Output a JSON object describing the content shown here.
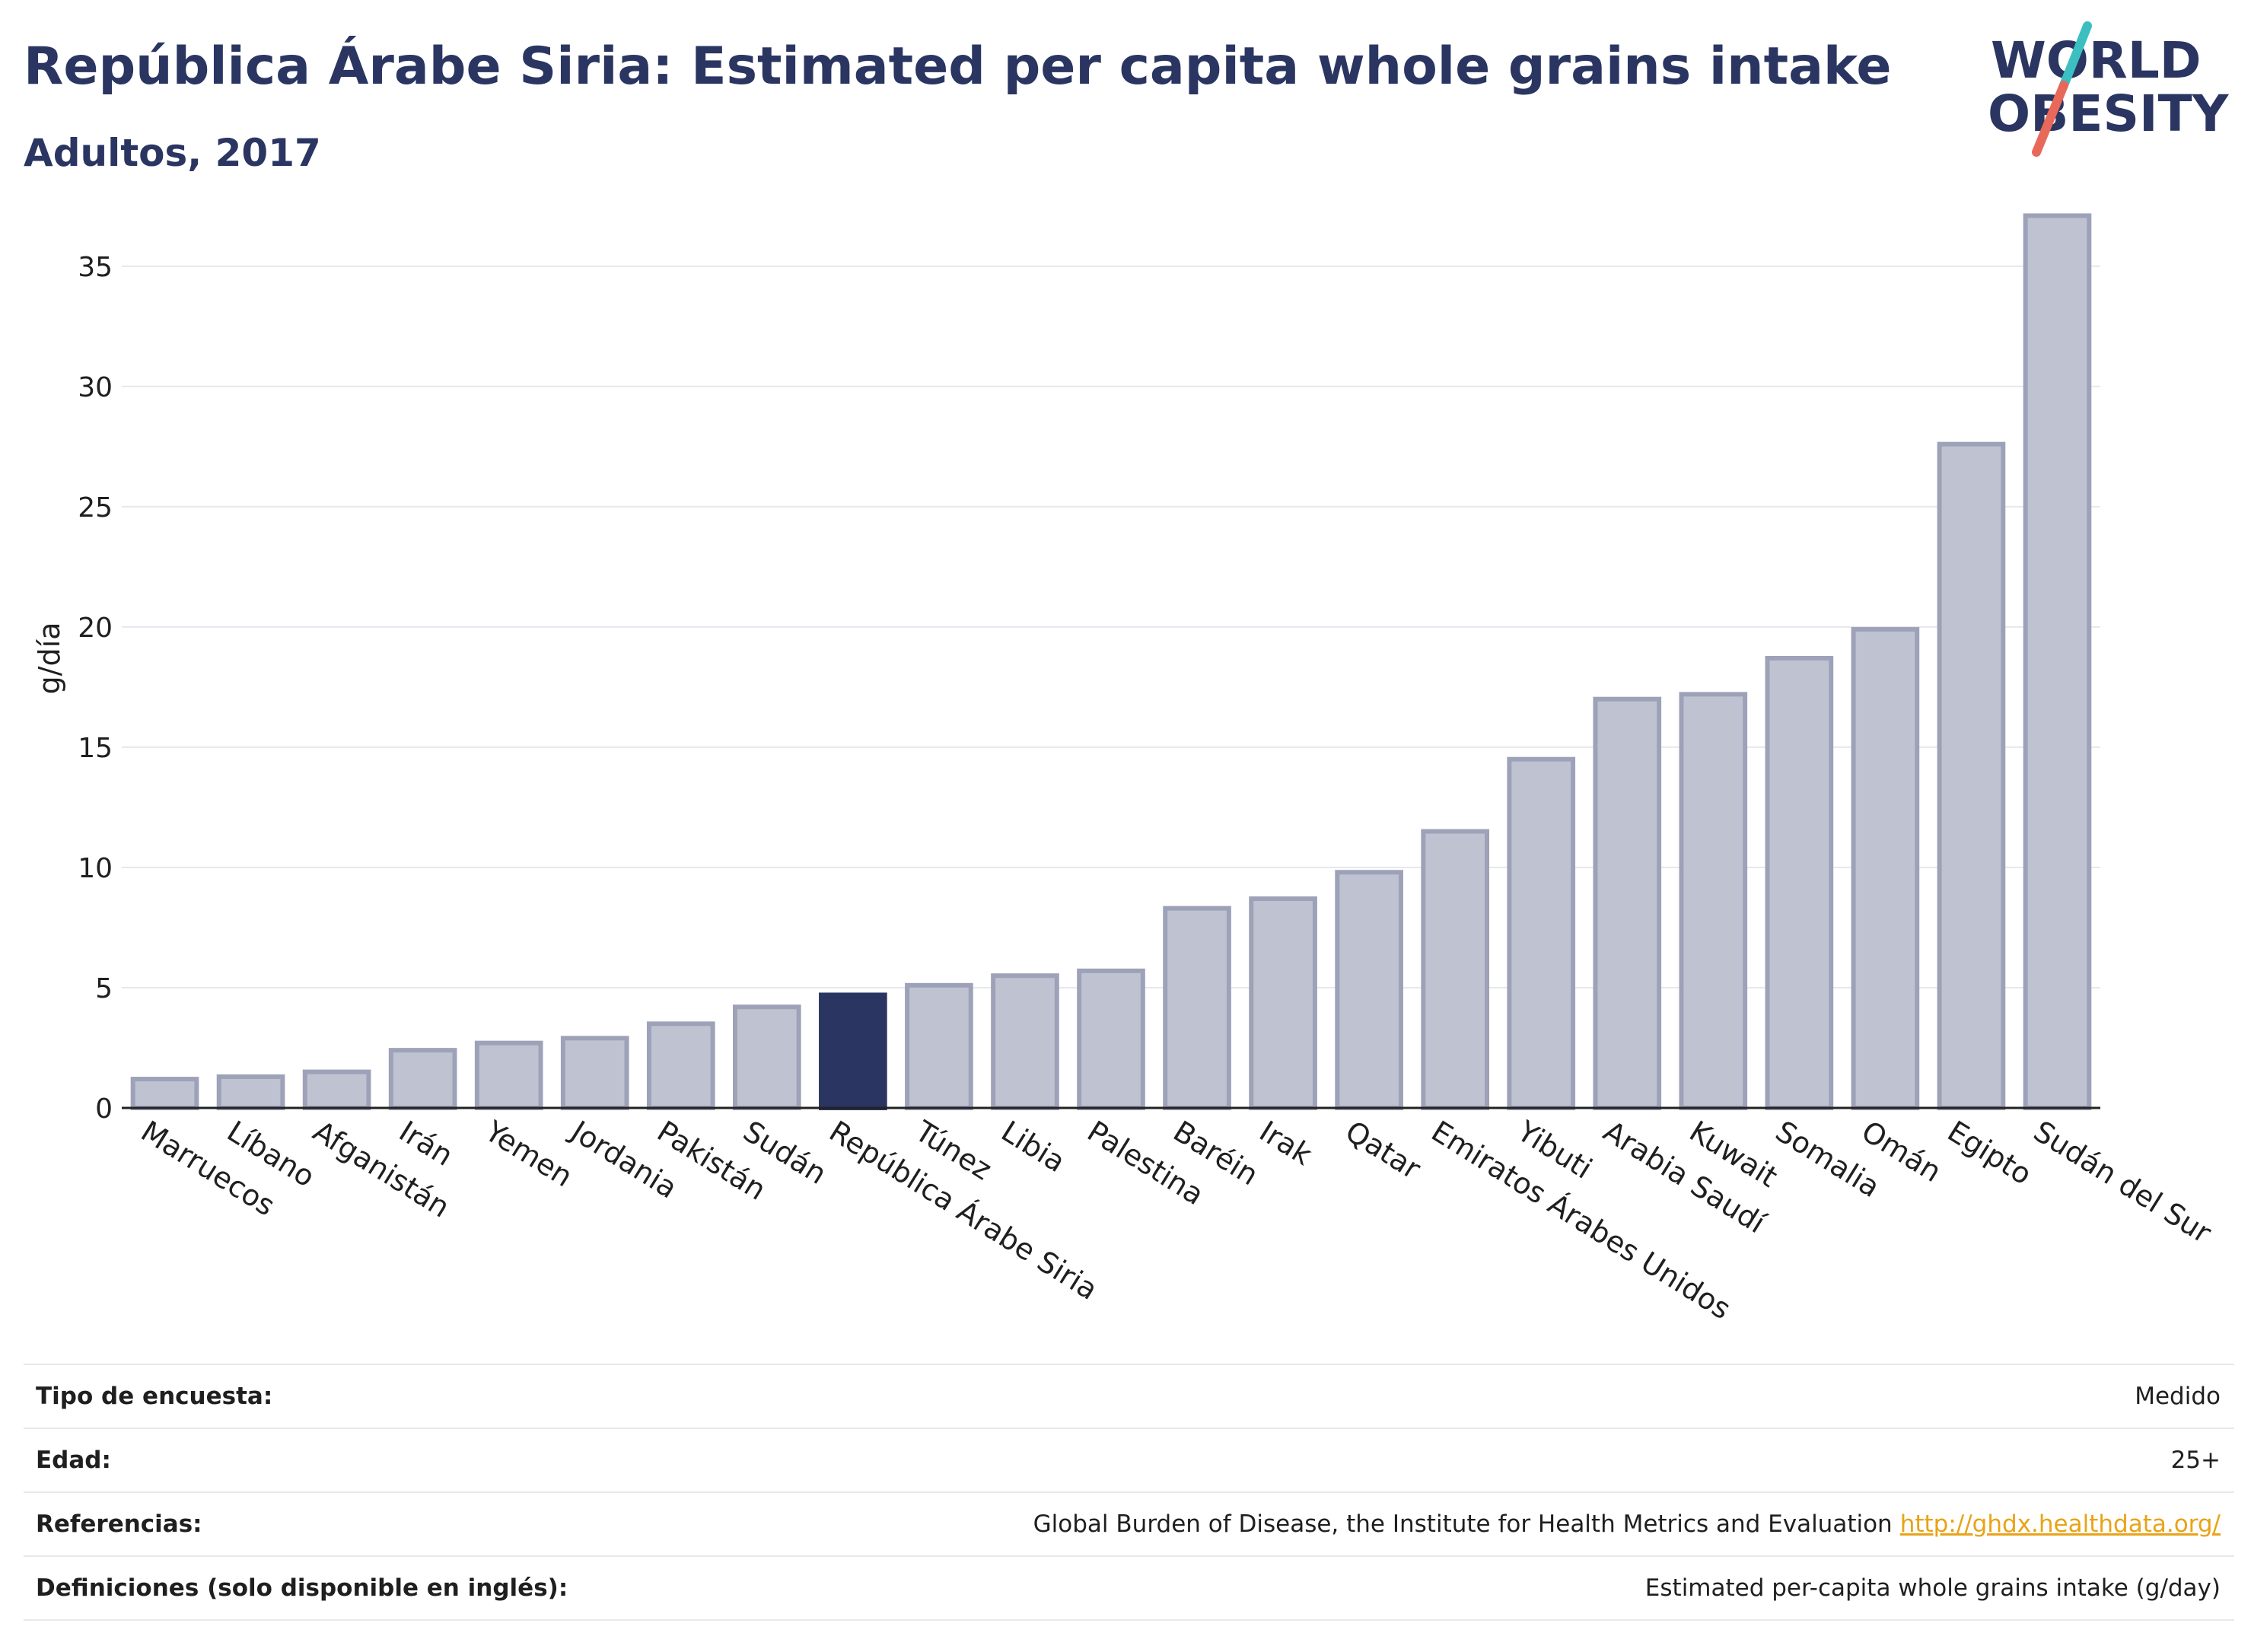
{
  "header": {
    "title": "República Árabe Siria: Estimated per capita whole grains intake",
    "subtitle": "Adultos, 2017"
  },
  "logo": {
    "line1": "WORLD",
    "line2": "OBESITY",
    "colors": {
      "text": "#2a3561",
      "slash_teal": "#3bbfc0",
      "slash_red": "#e8685a"
    }
  },
  "colors": {
    "bar_default": "#bfc3d1",
    "bar_default_stroke": "#9da2b8",
    "bar_highlight": "#2a3561",
    "grid": "#e6e8ee",
    "axis": "#222222"
  },
  "chart_data": {
    "type": "bar",
    "ylabel": "g/día",
    "ylim": [
      0,
      38
    ],
    "yticks": [
      0,
      5,
      10,
      15,
      20,
      25,
      30,
      35
    ],
    "grid": true,
    "highlight": "República Árabe Siria",
    "categories": [
      "Marruecos",
      "Líbano",
      "Afganistán",
      "Irán",
      "Yemen",
      "Jordania",
      "Pakistán",
      "Sudán",
      "República Árabe Siria",
      "Túnez",
      "Libia",
      "Palestina",
      "Baréin",
      "Irak",
      "Qatar",
      "Emiratos Árabes Unidos",
      "Yibuti",
      "Arabia Saudí",
      "Kuwait",
      "Somalia",
      "Omán",
      "Egipto",
      "Sudán del Sur"
    ],
    "values": [
      1.2,
      1.3,
      1.5,
      2.4,
      2.7,
      2.9,
      3.5,
      4.2,
      4.7,
      5.1,
      5.5,
      5.7,
      8.3,
      8.7,
      9.8,
      11.5,
      14.5,
      17.0,
      17.2,
      18.7,
      19.9,
      27.6,
      37.1
    ]
  },
  "info": [
    {
      "label": "Tipo de encuesta:",
      "value": "Medido",
      "link": ""
    },
    {
      "label": "Edad:",
      "value": "25+",
      "link": ""
    },
    {
      "label": "Referencias:",
      "value": "Global Burden of Disease, the Institute for Health Metrics and Evaluation",
      "link": "http://ghdx.healthdata.org/"
    },
    {
      "label": "Definiciones (solo disponible en inglés):",
      "value": "Estimated per-capita whole grains intake (g/day)",
      "link": ""
    }
  ]
}
